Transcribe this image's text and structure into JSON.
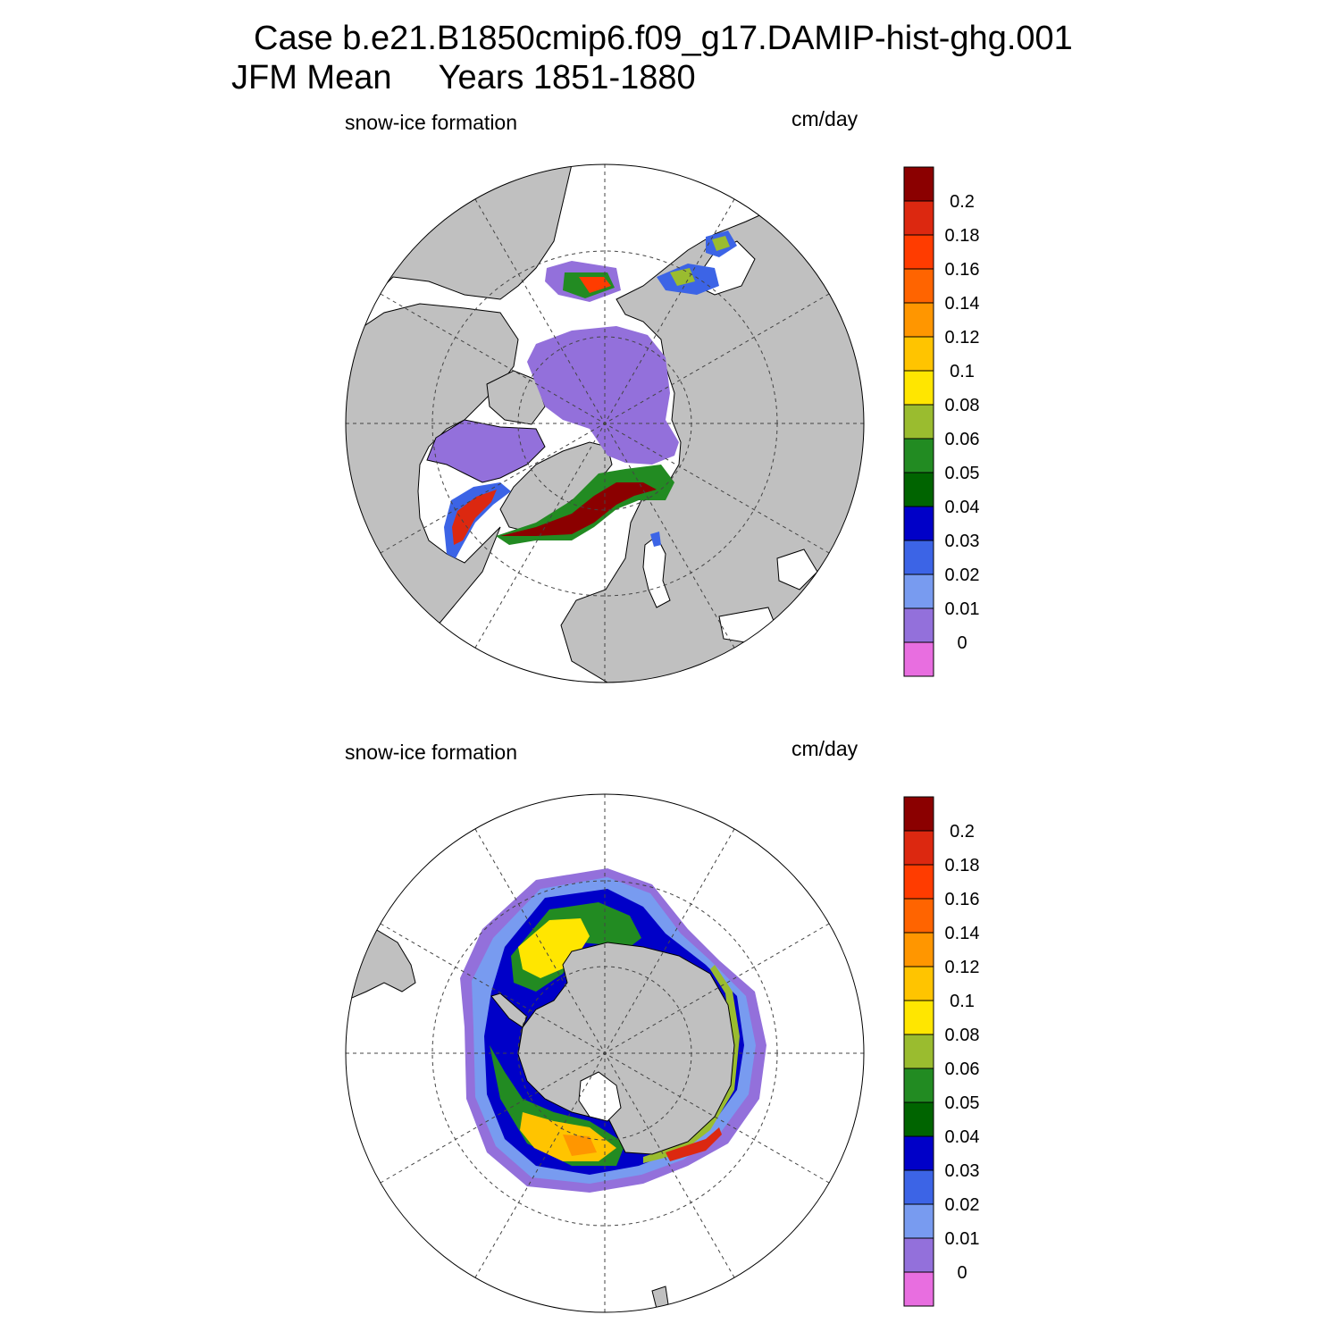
{
  "figure": {
    "case_title": "Case b.e21.B1850cmip6.f09_g17.DAMIP-hist-ghg.001",
    "period_title": "JFM Mean     Years 1851-1880"
  },
  "panels": [
    {
      "id": "north",
      "hemisphere": "Northern Hemisphere",
      "left_label": "snow-ice formation",
      "right_label": "cm/day"
    },
    {
      "id": "south",
      "hemisphere": "Southern Hemisphere",
      "left_label": "snow-ice formation",
      "right_label": "cm/day"
    }
  ],
  "colorbar": {
    "units": "cm/day",
    "labels": [
      "0.2",
      "0.18",
      "0.16",
      "0.14",
      "0.12",
      "0.1",
      "0.08",
      "0.06",
      "0.05",
      "0.04",
      "0.03",
      "0.02",
      "0.01",
      "0"
    ],
    "colors": [
      "#8b0000",
      "#dc2810",
      "#ff3c00",
      "#ff6400",
      "#ff9600",
      "#ffc400",
      "#ffe600",
      "#9abc2f",
      "#228b22",
      "#006400",
      "#0000c8",
      "#3c64e6",
      "#789bf0",
      "#9370db",
      "#e86ee0"
    ]
  },
  "map_colors": {
    "land": "#c0c0c0",
    "open_ocean": "#ffffff",
    "grid": "#555555"
  }
}
